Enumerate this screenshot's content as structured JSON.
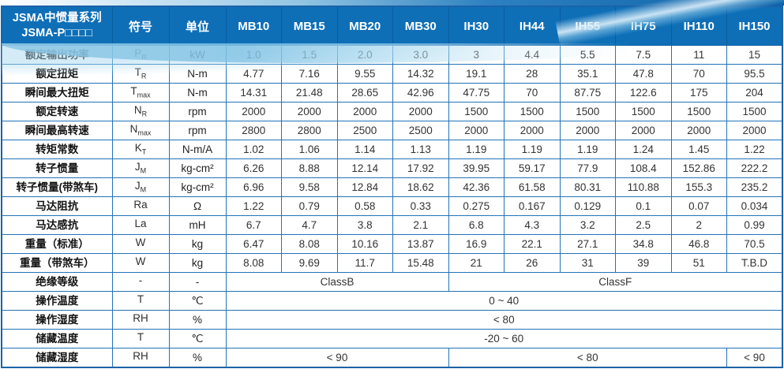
{
  "header": {
    "title_line1": "JSMA中惯量系列",
    "title_line2": "JSMA-P□□□□",
    "col_symbol": "符号",
    "col_unit": "单位",
    "models": [
      "MB10",
      "MB15",
      "MB20",
      "MB30",
      "IH30",
      "IH44",
      "IH55",
      "IH75",
      "IH110",
      "IH150"
    ]
  },
  "colors": {
    "header_bg": "#0e6fb7",
    "grid_line": "#2273b8",
    "outer_border": "#1b62a8",
    "header_text": "#ffffff",
    "wave_accent": "#8dc7e6"
  },
  "rows": [
    {
      "label": "额定输出功率",
      "sym": "P",
      "sub": "R",
      "unit": "kW",
      "cells": [
        [
          "1.0",
          1
        ],
        [
          "1.5",
          1
        ],
        [
          "2.0",
          1
        ],
        [
          "3.0",
          1
        ],
        [
          "3",
          1
        ],
        [
          "4.4",
          1
        ],
        [
          "5.5",
          1
        ],
        [
          "7.5",
          1
        ],
        [
          "11",
          1
        ],
        [
          "15",
          1
        ]
      ]
    },
    {
      "label": "额定扭矩",
      "sym": "T",
      "sub": "R",
      "unit": "N-m",
      "cells": [
        [
          "4.77",
          1
        ],
        [
          "7.16",
          1
        ],
        [
          "9.55",
          1
        ],
        [
          "14.32",
          1
        ],
        [
          "19.1",
          1
        ],
        [
          "28",
          1
        ],
        [
          "35.1",
          1
        ],
        [
          "47.8",
          1
        ],
        [
          "70",
          1
        ],
        [
          "95.5",
          1
        ]
      ]
    },
    {
      "label": "瞬间最大扭矩",
      "sym": "T",
      "sub": "max",
      "unit": "N-m",
      "cells": [
        [
          "14.31",
          1
        ],
        [
          "21.48",
          1
        ],
        [
          "28.65",
          1
        ],
        [
          "42.96",
          1
        ],
        [
          "47.75",
          1
        ],
        [
          "70",
          1
        ],
        [
          "87.75",
          1
        ],
        [
          "122.6",
          1
        ],
        [
          "175",
          1
        ],
        [
          "204",
          1
        ]
      ]
    },
    {
      "label": "额定转速",
      "sym": "N",
      "sub": "R",
      "unit": "rpm",
      "cells": [
        [
          "2000",
          1
        ],
        [
          "2000",
          1
        ],
        [
          "2000",
          1
        ],
        [
          "2000",
          1
        ],
        [
          "1500",
          1
        ],
        [
          "1500",
          1
        ],
        [
          "1500",
          1
        ],
        [
          "1500",
          1
        ],
        [
          "1500",
          1
        ],
        [
          "1500",
          1
        ]
      ]
    },
    {
      "label": "瞬间最高转速",
      "sym": "N",
      "sub": "max",
      "unit": "rpm",
      "cells": [
        [
          "2800",
          1
        ],
        [
          "2800",
          1
        ],
        [
          "2500",
          1
        ],
        [
          "2500",
          1
        ],
        [
          "2000",
          1
        ],
        [
          "2000",
          1
        ],
        [
          "2000",
          1
        ],
        [
          "2000",
          1
        ],
        [
          "2000",
          1
        ],
        [
          "2000",
          1
        ]
      ]
    },
    {
      "label": "转矩常数",
      "sym": "K",
      "sub": "T",
      "unit": "N-m/A",
      "cells": [
        [
          "1.02",
          1
        ],
        [
          "1.06",
          1
        ],
        [
          "1.14",
          1
        ],
        [
          "1.13",
          1
        ],
        [
          "1.19",
          1
        ],
        [
          "1.19",
          1
        ],
        [
          "1.19",
          1
        ],
        [
          "1.24",
          1
        ],
        [
          "1.45",
          1
        ],
        [
          "1.22",
          1
        ]
      ]
    },
    {
      "label": "转子惯量",
      "sym": "J",
      "sub": "M",
      "unit": "kg-cm²",
      "cells": [
        [
          "6.26",
          1
        ],
        [
          "8.88",
          1
        ],
        [
          "12.14",
          1
        ],
        [
          "17.92",
          1
        ],
        [
          "39.95",
          1
        ],
        [
          "59.17",
          1
        ],
        [
          "77.9",
          1
        ],
        [
          "108.4",
          1
        ],
        [
          "152.86",
          1
        ],
        [
          "222.2",
          1
        ]
      ]
    },
    {
      "label": "转子惯量(带煞车)",
      "sym": "J",
      "sub": "M",
      "unit": "kg-cm²",
      "cells": [
        [
          "6.96",
          1
        ],
        [
          "9.58",
          1
        ],
        [
          "12.84",
          1
        ],
        [
          "18.62",
          1
        ],
        [
          "42.36",
          1
        ],
        [
          "61.58",
          1
        ],
        [
          "80.31",
          1
        ],
        [
          "110.88",
          1
        ],
        [
          "155.3",
          1
        ],
        [
          "235.2",
          1
        ]
      ]
    },
    {
      "label": "马达阻抗",
      "sym": "Ra",
      "sub": "",
      "unit": "Ω",
      "cells": [
        [
          "1.22",
          1
        ],
        [
          "0.79",
          1
        ],
        [
          "0.58",
          1
        ],
        [
          "0.33",
          1
        ],
        [
          "0.275",
          1
        ],
        [
          "0.167",
          1
        ],
        [
          "0.129",
          1
        ],
        [
          "0.1",
          1
        ],
        [
          "0.07",
          1
        ],
        [
          "0.034",
          1
        ]
      ]
    },
    {
      "label": "马达感抗",
      "sym": "La",
      "sub": "",
      "unit": "mH",
      "cells": [
        [
          "6.7",
          1
        ],
        [
          "4.7",
          1
        ],
        [
          "3.8",
          1
        ],
        [
          "2.1",
          1
        ],
        [
          "6.8",
          1
        ],
        [
          "4.3",
          1
        ],
        [
          "3.2",
          1
        ],
        [
          "2.5",
          1
        ],
        [
          "2",
          1
        ],
        [
          "0.99",
          1
        ]
      ]
    },
    {
      "label": "重量（标准）",
      "sym": "W",
      "sub": "",
      "unit": "kg",
      "cells": [
        [
          "6.47",
          1
        ],
        [
          "8.08",
          1
        ],
        [
          "10.16",
          1
        ],
        [
          "13.87",
          1
        ],
        [
          "16.9",
          1
        ],
        [
          "22.1",
          1
        ],
        [
          "27.1",
          1
        ],
        [
          "34.8",
          1
        ],
        [
          "46.8",
          1
        ],
        [
          "70.5",
          1
        ]
      ]
    },
    {
      "label": "重量（带煞车）",
      "sym": "W",
      "sub": "",
      "unit": "kg",
      "cells": [
        [
          "8.08",
          1
        ],
        [
          "9.69",
          1
        ],
        [
          "11.7",
          1
        ],
        [
          "15.48",
          1
        ],
        [
          "21",
          1
        ],
        [
          "26",
          1
        ],
        [
          "31",
          1
        ],
        [
          "39",
          1
        ],
        [
          "51",
          1
        ],
        [
          "T.B.D",
          1
        ]
      ]
    },
    {
      "label": "绝缘等级",
      "sym": "-",
      "sub": "",
      "unit": "-",
      "cells": [
        [
          "ClassB",
          4
        ],
        [
          "ClassF",
          6
        ]
      ]
    },
    {
      "label": "操作温度",
      "sym": "T",
      "sub": "",
      "unit": "℃",
      "cells": [
        [
          "0 ~ 40",
          10
        ]
      ]
    },
    {
      "label": "操作湿度",
      "sym": "RH",
      "sub": "",
      "unit": "%",
      "cells": [
        [
          "< 80",
          10
        ]
      ]
    },
    {
      "label": "储藏温度",
      "sym": "T",
      "sub": "",
      "unit": "℃",
      "cells": [
        [
          "-20 ~ 60",
          10
        ]
      ]
    },
    {
      "label": "储藏湿度",
      "sym": "RH",
      "sub": "",
      "unit": "%",
      "cells": [
        [
          "< 90",
          4
        ],
        [
          "< 80",
          5
        ],
        [
          "< 90",
          1
        ]
      ]
    }
  ]
}
